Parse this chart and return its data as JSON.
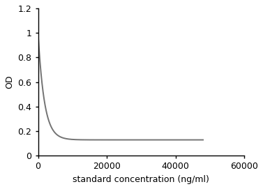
{
  "title": "",
  "xlabel": "standard concentration (ng/ml)",
  "ylabel": "OD",
  "xlim": [
    0,
    60000
  ],
  "ylim": [
    0,
    1.2
  ],
  "xticks": [
    0,
    20000,
    40000,
    60000
  ],
  "yticks": [
    0,
    0.2,
    0.4,
    0.6,
    0.8,
    1.0,
    1.2
  ],
  "line_color": "#737373",
  "line_width": 1.4,
  "curve_x_start": 0,
  "curve_x_end": 48000,
  "A": 0.13,
  "B": 0.87,
  "k": 0.00055,
  "background_color": "#ffffff",
  "plot_bg_color": "#ffffff",
  "xlabel_fontsize": 9,
  "ylabel_fontsize": 9,
  "tick_fontsize": 9
}
